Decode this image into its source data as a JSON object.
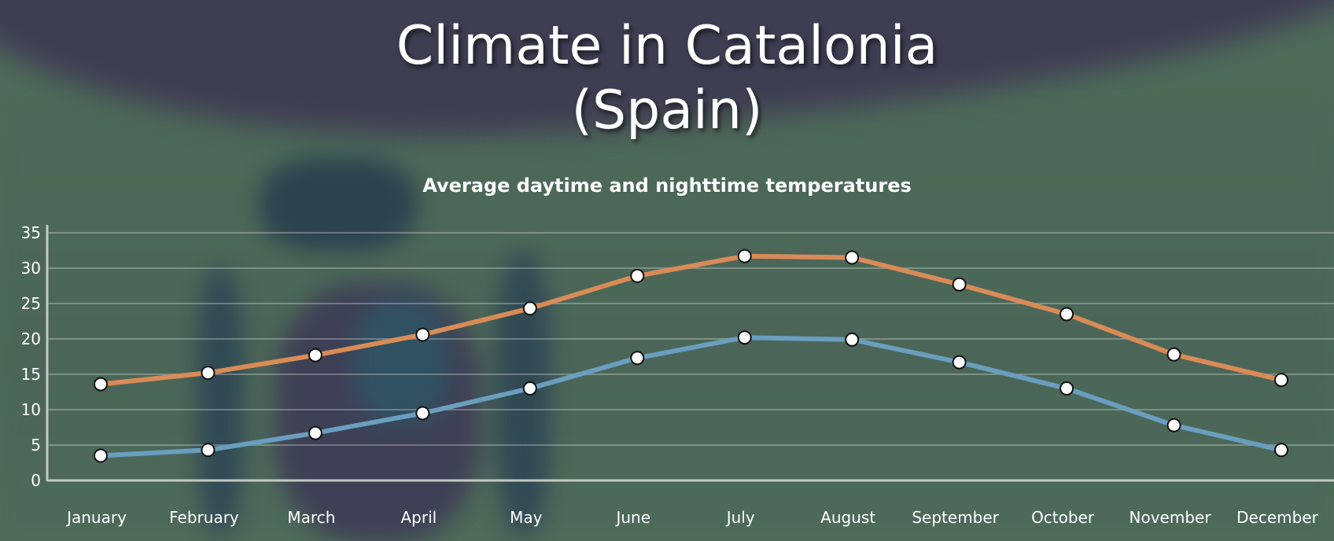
{
  "header": {
    "title_line1": "Climate in Catalonia",
    "title_line2": "(Spain)"
  },
  "chart_data": {
    "type": "line",
    "title": "Climate in Catalonia (Spain)",
    "subtitle": "Average daytime and nighttime temperatures",
    "xlabel": "",
    "ylabel": "",
    "categories": [
      "January",
      "February",
      "March",
      "April",
      "May",
      "June",
      "July",
      "August",
      "September",
      "October",
      "November",
      "December"
    ],
    "ylim": [
      0,
      35
    ],
    "yticks": [
      0,
      5,
      10,
      15,
      20,
      25,
      30,
      35
    ],
    "grid": true,
    "legend": "none",
    "series": [
      {
        "name": "Daytime",
        "color": "#d98b57",
        "values": [
          13.6,
          15.2,
          17.7,
          20.6,
          24.3,
          28.9,
          31.7,
          31.5,
          27.7,
          23.5,
          17.8,
          14.2
        ]
      },
      {
        "name": "Nighttime",
        "color": "#6a9ebf",
        "values": [
          3.5,
          4.3,
          6.7,
          9.5,
          13.0,
          17.3,
          20.2,
          19.9,
          16.7,
          13.0,
          7.8,
          4.3
        ]
      }
    ]
  }
}
